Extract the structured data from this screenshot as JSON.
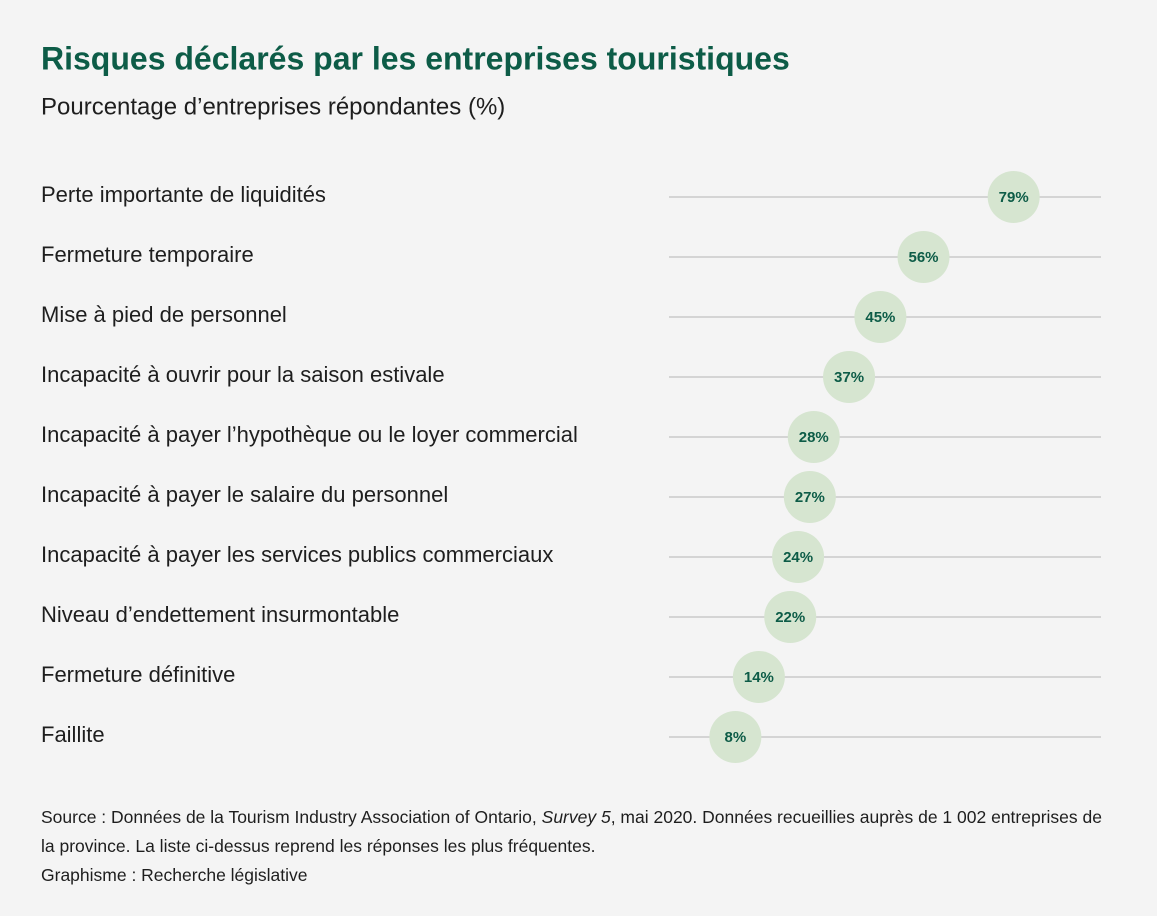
{
  "chart_data": {
    "type": "dot",
    "title": "Risques déclarés par les entreprises touristiques",
    "subtitle": "Pourcentage d’entreprises répondantes (%)",
    "categories": [
      "Perte importante de liquidités",
      "Fermeture temporaire",
      "Mise à pied de personnel",
      "Incapacité à ouvrir pour la saison estivale",
      "Incapacité à payer l’hypothèque ou le loyer commercial",
      "Incapacité à payer le salaire du personnel",
      "Incapacité à payer les services publics commerciaux",
      "Niveau d’endettement insurmontable",
      "Fermeture définitive",
      "Faillite"
    ],
    "values": [
      79,
      56,
      45,
      37,
      28,
      27,
      24,
      22,
      14,
      8
    ],
    "value_labels": [
      "79%",
      "56%",
      "45%",
      "37%",
      "28%",
      "27%",
      "24%",
      "22%",
      "14%",
      "8%"
    ],
    "color": "#d6e5d0",
    "xlim": [
      0,
      100
    ],
    "source": [
      "Source : Données de la Tourism Industry Association of Ontario, ",
      "Survey 5",
      ", mai 2020. Données recueillies auprès de 1 002 entreprises de la province. La liste ci-dessus reprend les réponses les plus fréquentes."
    ],
    "credit": "Graphisme : Recherche législative"
  }
}
